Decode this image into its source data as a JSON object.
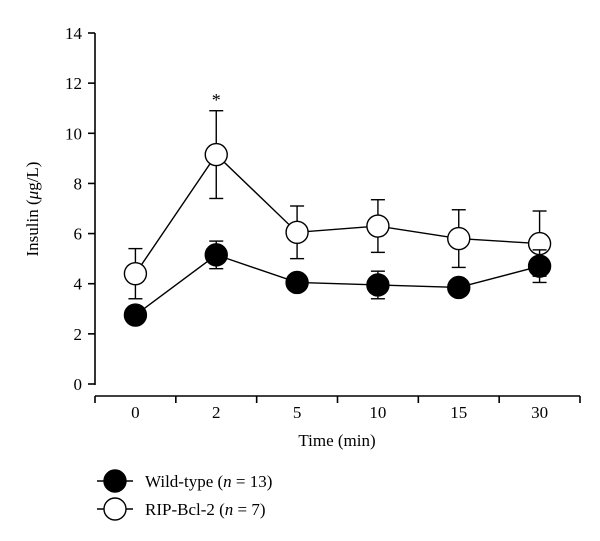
{
  "chart_data": {
    "type": "line",
    "xlabel": "Time (min)",
    "ylabel_prefix": "Insulin (",
    "ylabel_mu": "μ",
    "ylabel_suffix": "g/L)",
    "categories": [
      "0",
      "2",
      "5",
      "10",
      "15",
      "30"
    ],
    "ylim": [
      0,
      14
    ],
    "yticks": [
      "0",
      "2",
      "4",
      "6",
      "8",
      "10",
      "12",
      "14"
    ],
    "grid": false,
    "legend_placement": "bottom-left",
    "series": [
      {
        "name_main": "Wild-type (",
        "name_n": "n",
        "name_rest": " = 13)",
        "marker": "filled",
        "values": [
          2.75,
          5.15,
          4.05,
          3.95,
          3.85,
          4.7
        ],
        "error": [
          0.2,
          0.55,
          0.25,
          0.55,
          0.2,
          0.65
        ]
      },
      {
        "name_main": "RIP-Bcl-2 (",
        "name_n": "n",
        "name_rest": " = 7)",
        "marker": "open",
        "values": [
          4.4,
          9.15,
          6.05,
          6.3,
          5.8,
          5.6
        ],
        "error": [
          1.0,
          1.75,
          1.05,
          1.05,
          1.15,
          1.3
        ]
      }
    ],
    "annotations": [
      {
        "text": "*",
        "category_index": 1,
        "y": 11.4
      }
    ]
  }
}
